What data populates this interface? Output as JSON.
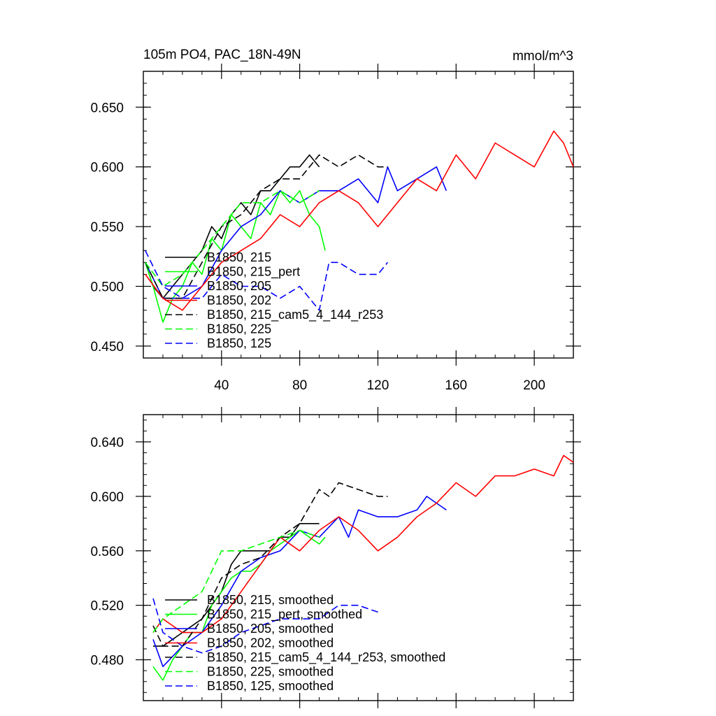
{
  "chart_data": [
    {
      "type": "line",
      "title": "105m PO4, PAC_18N-49N",
      "units": "mmol/m^3",
      "xlim": [
        0,
        220
      ],
      "ylim": [
        0.44,
        0.68
      ],
      "xticks": [
        40,
        80,
        120,
        160,
        200
      ],
      "xtick_labels": [
        "40",
        "80",
        "120",
        "160",
        "200"
      ],
      "yticks": [
        0.45,
        0.5,
        0.55,
        0.6,
        0.65
      ],
      "ytick_labels": [
        "0.450",
        "0.500",
        "0.550",
        "0.600",
        "0.650"
      ],
      "legend_position": "lower-left",
      "series": [
        {
          "name": "B1850, 215",
          "color": "#000000",
          "dash": "solid",
          "x": [
            1,
            5,
            10,
            15,
            20,
            25,
            30,
            35,
            40,
            45,
            50,
            55,
            60,
            65,
            70,
            75,
            80,
            85,
            90
          ],
          "y": [
            0.52,
            0.5,
            0.49,
            0.5,
            0.51,
            0.52,
            0.53,
            0.55,
            0.54,
            0.56,
            0.57,
            0.56,
            0.58,
            0.58,
            0.59,
            0.6,
            0.6,
            0.61,
            0.6
          ]
        },
        {
          "name": "B1850, 215_pert",
          "color": "#00ff00",
          "dash": "solid",
          "x": [
            1,
            5,
            10,
            15,
            20,
            25,
            30,
            35,
            40,
            45,
            50,
            55,
            60,
            65,
            70,
            75,
            80,
            85,
            90,
            93
          ],
          "y": [
            0.52,
            0.5,
            0.47,
            0.49,
            0.5,
            0.52,
            0.51,
            0.54,
            0.53,
            0.56,
            0.55,
            0.54,
            0.57,
            0.56,
            0.58,
            0.57,
            0.58,
            0.56,
            0.55,
            0.53
          ]
        },
        {
          "name": "B1850, 205",
          "color": "#0000ff",
          "dash": "solid",
          "x": [
            1,
            10,
            20,
            30,
            40,
            50,
            60,
            70,
            80,
            90,
            100,
            110,
            120,
            125,
            130,
            140,
            150,
            155
          ],
          "y": [
            0.52,
            0.49,
            0.49,
            0.5,
            0.53,
            0.55,
            0.56,
            0.58,
            0.57,
            0.58,
            0.58,
            0.59,
            0.57,
            0.6,
            0.58,
            0.59,
            0.6,
            0.58
          ]
        },
        {
          "name": "B1850, 202",
          "color": "#ff0000",
          "dash": "solid",
          "x": [
            1,
            10,
            20,
            30,
            40,
            50,
            60,
            70,
            80,
            90,
            100,
            110,
            120,
            130,
            140,
            150,
            160,
            170,
            180,
            190,
            200,
            210,
            215,
            220
          ],
          "y": [
            0.51,
            0.49,
            0.48,
            0.5,
            0.52,
            0.53,
            0.54,
            0.56,
            0.55,
            0.57,
            0.58,
            0.57,
            0.55,
            0.57,
            0.59,
            0.58,
            0.61,
            0.59,
            0.62,
            0.61,
            0.6,
            0.63,
            0.62,
            0.6
          ]
        },
        {
          "name": "B1850, 215_cam5_4_144_r253",
          "color": "#000000",
          "dash": "dashed",
          "x": [
            1,
            10,
            20,
            30,
            40,
            50,
            60,
            70,
            80,
            90,
            100,
            110,
            120,
            125
          ],
          "y": [
            0.52,
            0.49,
            0.49,
            0.52,
            0.55,
            0.56,
            0.58,
            0.59,
            0.59,
            0.61,
            0.6,
            0.61,
            0.6,
            0.6
          ]
        },
        {
          "name": "B1850, 225",
          "color": "#00ff00",
          "dash": "dashed",
          "x": [
            1,
            10,
            20,
            30,
            40,
            50,
            60,
            70,
            80,
            90
          ],
          "y": [
            0.52,
            0.5,
            0.51,
            0.53,
            0.55,
            0.57,
            0.57,
            0.58,
            0.57,
            0.58
          ]
        },
        {
          "name": "B1850, 125",
          "color": "#0000ff",
          "dash": "dashed",
          "x": [
            1,
            10,
            20,
            30,
            40,
            50,
            60,
            70,
            80,
            90,
            95,
            100,
            110,
            120,
            125
          ],
          "y": [
            0.53,
            0.5,
            0.49,
            0.49,
            0.51,
            0.5,
            0.5,
            0.49,
            0.5,
            0.48,
            0.52,
            0.52,
            0.51,
            0.51,
            0.52
          ]
        }
      ]
    },
    {
      "type": "line",
      "title": "",
      "xlim": [
        0,
        220
      ],
      "ylim": [
        0.45,
        0.66
      ],
      "xticks": [
        40,
        80,
        120,
        160,
        200
      ],
      "yticks": [
        0.48,
        0.52,
        0.56,
        0.6,
        0.64
      ],
      "ytick_labels": [
        "0.480",
        "0.520",
        "0.560",
        "0.600",
        "0.640"
      ],
      "legend_position": "lower-left",
      "series": [
        {
          "name": "B1850, 215, smoothed",
          "color": "#000000",
          "dash": "solid",
          "x": [
            5,
            10,
            20,
            30,
            40,
            45,
            50,
            55,
            60,
            65,
            70,
            75,
            80,
            85,
            90
          ],
          "y": [
            0.49,
            0.49,
            0.5,
            0.51,
            0.53,
            0.55,
            0.56,
            0.56,
            0.56,
            0.56,
            0.57,
            0.57,
            0.58,
            0.58,
            0.58
          ]
        },
        {
          "name": "B1850, 215_pert, smoothed",
          "color": "#00ff00",
          "dash": "solid",
          "x": [
            5,
            10,
            15,
            20,
            25,
            30,
            35,
            40,
            45,
            50,
            55,
            60,
            65,
            70,
            75,
            80,
            85,
            90,
            93
          ],
          "y": [
            0.475,
            0.465,
            0.48,
            0.49,
            0.5,
            0.5,
            0.52,
            0.53,
            0.54,
            0.545,
            0.545,
            0.55,
            0.56,
            0.565,
            0.57,
            0.575,
            0.57,
            0.565,
            0.57
          ]
        },
        {
          "name": "B1850, 205, smoothed",
          "color": "#0000ff",
          "dash": "solid",
          "x": [
            5,
            10,
            20,
            30,
            40,
            50,
            60,
            70,
            80,
            90,
            100,
            105,
            110,
            120,
            130,
            140,
            145,
            150,
            155
          ],
          "y": [
            0.495,
            0.475,
            0.49,
            0.5,
            0.52,
            0.545,
            0.555,
            0.56,
            0.575,
            0.57,
            0.585,
            0.57,
            0.59,
            0.585,
            0.585,
            0.59,
            0.6,
            0.595,
            0.59
          ]
        },
        {
          "name": "B1850, 202, smoothed",
          "color": "#ff0000",
          "dash": "solid",
          "x": [
            5,
            10,
            20,
            30,
            40,
            50,
            60,
            70,
            80,
            90,
            100,
            110,
            120,
            130,
            140,
            150,
            160,
            170,
            180,
            190,
            200,
            210,
            215,
            220
          ],
          "y": [
            0.5,
            0.51,
            0.5,
            0.5,
            0.51,
            0.53,
            0.55,
            0.57,
            0.56,
            0.575,
            0.585,
            0.575,
            0.56,
            0.57,
            0.585,
            0.595,
            0.61,
            0.6,
            0.615,
            0.615,
            0.62,
            0.615,
            0.63,
            0.625
          ]
        },
        {
          "name": "B1850, 215_cam5_4_144_r253, smoothed",
          "color": "#000000",
          "dash": "dashed",
          "x": [
            5,
            10,
            20,
            30,
            40,
            50,
            60,
            70,
            80,
            90,
            95,
            100,
            110,
            120,
            125
          ],
          "y": [
            0.505,
            0.49,
            0.49,
            0.51,
            0.54,
            0.55,
            0.555,
            0.57,
            0.58,
            0.605,
            0.6,
            0.61,
            0.605,
            0.6,
            0.6
          ]
        },
        {
          "name": "B1850, 225, smoothed",
          "color": "#00ff00",
          "dash": "dashed",
          "x": [
            5,
            10,
            20,
            30,
            40,
            50,
            60,
            70,
            80,
            90
          ],
          "y": [
            0.5,
            0.51,
            0.52,
            0.53,
            0.56,
            0.56,
            0.565,
            0.57,
            0.575,
            0.57
          ]
        },
        {
          "name": "B1850, 125, smoothed",
          "color": "#0000ff",
          "dash": "dashed",
          "x": [
            5,
            10,
            20,
            30,
            40,
            50,
            60,
            70,
            80,
            90,
            100,
            110,
            120
          ],
          "y": [
            0.525,
            0.5,
            0.49,
            0.485,
            0.49,
            0.5,
            0.505,
            0.51,
            0.51,
            0.51,
            0.52,
            0.52,
            0.515
          ]
        }
      ]
    }
  ]
}
